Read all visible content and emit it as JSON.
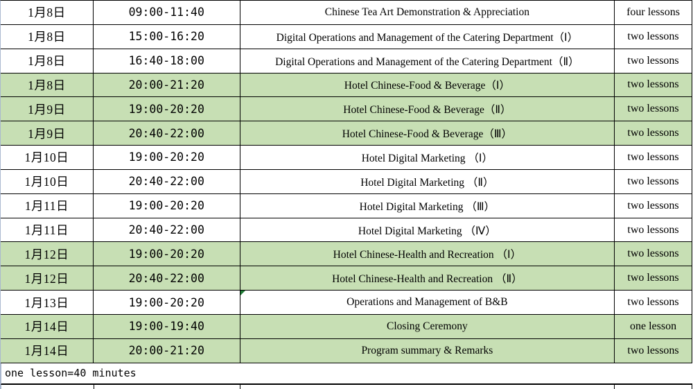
{
  "table": {
    "highlight_color": "#c7dfb4",
    "marker_color": "#1e7b34",
    "gridline_color": "#aab8cf",
    "columns": [
      "date",
      "time",
      "course",
      "lessons"
    ],
    "rows": [
      {
        "date": "1月8日",
        "time": "09:00-11:40",
        "course": "Chinese Tea Art Demonstration & Appreciation",
        "lessons": "four lessons",
        "highlighted": false
      },
      {
        "date": "1月8日",
        "time": "15:00-16:20",
        "course": "Digital Operations and Management of the Catering Department（Ⅰ）",
        "lessons": "two lessons",
        "highlighted": false
      },
      {
        "date": "1月8日",
        "time": "16:40-18:00",
        "course": "Digital Operations and Management of the Catering Department（Ⅱ）",
        "lessons": "two lessons",
        "highlighted": false
      },
      {
        "date": "1月8日",
        "time": "20:00-21:20",
        "course": "Hotel Chinese-Food & Beverage（Ⅰ）",
        "lessons": "two lessons",
        "highlighted": true
      },
      {
        "date": "1月9日",
        "time": "19:00-20:20",
        "course": "Hotel Chinese-Food & Beverage（Ⅱ）",
        "lessons": "two lessons",
        "highlighted": true
      },
      {
        "date": "1月9日",
        "time": "20:40-22:00",
        "course": "Hotel Chinese-Food & Beverage（Ⅲ）",
        "lessons": "two lessons",
        "highlighted": true
      },
      {
        "date": "1月10日",
        "time": "19:00-20:20",
        "course": "Hotel Digital Marketing （Ⅰ）",
        "lessons": "two lessons",
        "highlighted": false
      },
      {
        "date": "1月10日",
        "time": "20:40-22:00",
        "course": "Hotel Digital Marketing （Ⅱ）",
        "lessons": "two lessons",
        "highlighted": false
      },
      {
        "date": "1月11日",
        "time": "19:00-20:20",
        "course": "Hotel Digital Marketing （Ⅲ）",
        "lessons": "two lessons",
        "highlighted": false
      },
      {
        "date": "1月11日",
        "time": "20:40-22:00",
        "course": "Hotel Digital Marketing （Ⅳ）",
        "lessons": "two lessons",
        "highlighted": false
      },
      {
        "date": "1月12日",
        "time": "19:00-20:20",
        "course": "Hotel Chinese-Health and Recreation （Ⅰ）",
        "lessons": "two lessons",
        "highlighted": true
      },
      {
        "date": "1月12日",
        "time": "20:40-22:00",
        "course": "Hotel Chinese-Health and Recreation （Ⅱ）",
        "lessons": "two lessons",
        "highlighted": true
      },
      {
        "date": "1月13日",
        "time": "19:00-20:20",
        "course": "Operations and Management of B&B",
        "lessons": "two lessons",
        "highlighted": false,
        "marker": true
      },
      {
        "date": "1月14日",
        "time": "19:00-19:40",
        "course": "Closing Ceremony",
        "lessons": "one lesson",
        "highlighted": true
      },
      {
        "date": "1月14日",
        "time": "20:00-21:20",
        "course": "Program summary & Remarks",
        "lessons": "two lessons",
        "highlighted": true
      }
    ],
    "footer_note": "one lesson=40 minutes"
  }
}
